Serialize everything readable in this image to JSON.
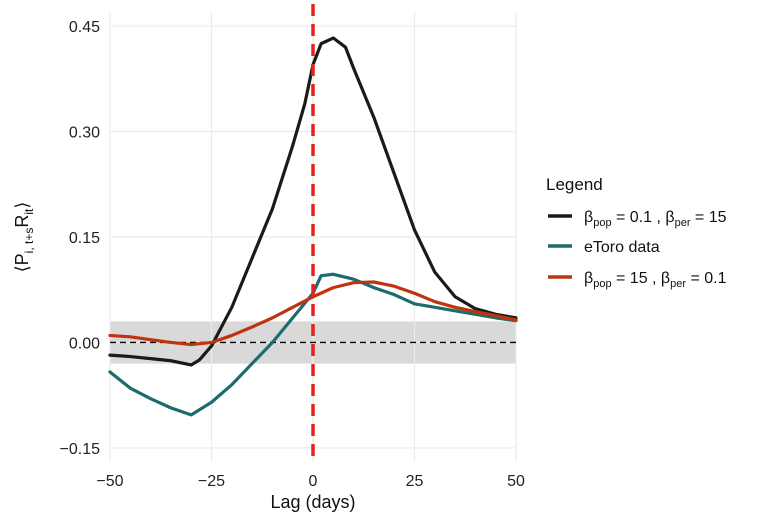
{
  "chart_data": {
    "type": "line",
    "xlabel": "Lag (days)",
    "ylabel": "⟨P_{i, t+s} R_{it}⟩",
    "xlim": [
      -50,
      50
    ],
    "ylim": [
      -0.17,
      0.47
    ],
    "x_ticks": [
      -50,
      -25,
      0,
      25,
      50
    ],
    "x_tick_labels": [
      "−50",
      "−25",
      "0",
      "25",
      "50"
    ],
    "y_ticks": [
      -0.15,
      0.0,
      0.15,
      0.3,
      0.45
    ],
    "y_tick_labels": [
      "−0.15",
      "0.00",
      "0.15",
      "0.30",
      "0.45"
    ],
    "grid": true,
    "legend_position": "right",
    "legend_title": "Legend",
    "zero_line": {
      "y": 0,
      "style": "dashed",
      "color": "#000000"
    },
    "vertical_marker": {
      "x": 0,
      "style": "dashed",
      "color": "#e8211f"
    },
    "confidence_band": {
      "color": "#d9d9d9",
      "x": [
        -50,
        -40,
        -30,
        -20,
        -10,
        0,
        10,
        20,
        30,
        40,
        50
      ],
      "upper": [
        0.03,
        0.03,
        0.03,
        0.03,
        0.03,
        0.03,
        0.03,
        0.03,
        0.03,
        0.03,
        0.03
      ],
      "lower": [
        -0.03,
        -0.03,
        -0.03,
        -0.03,
        -0.03,
        -0.03,
        -0.03,
        -0.03,
        -0.03,
        -0.03,
        -0.03
      ]
    },
    "series": [
      {
        "name": "β_pop = 0.1 , β_per = 15",
        "legend_parts": [
          "β",
          "pop",
          " = 0.1 , β",
          "per",
          " = 15"
        ],
        "color": "#1a1a1a",
        "x": [
          -50,
          -45,
          -40,
          -35,
          -30,
          -28,
          -25,
          -20,
          -15,
          -10,
          -5,
          -2,
          0,
          2,
          5,
          8,
          10,
          15,
          20,
          25,
          30,
          35,
          40,
          45,
          50
        ],
        "values": [
          -0.018,
          -0.02,
          -0.023,
          -0.026,
          -0.032,
          -0.025,
          -0.005,
          0.05,
          0.12,
          0.19,
          0.28,
          0.34,
          0.395,
          0.425,
          0.433,
          0.42,
          0.39,
          0.32,
          0.24,
          0.16,
          0.1,
          0.065,
          0.048,
          0.04,
          0.035
        ]
      },
      {
        "name": "eToro data",
        "legend_parts": [
          "eToro data",
          "",
          "",
          "",
          ""
        ],
        "color": "#1d6b6b",
        "x": [
          -50,
          -45,
          -40,
          -35,
          -30,
          -25,
          -20,
          -15,
          -10,
          -5,
          0,
          2,
          5,
          10,
          15,
          20,
          25,
          30,
          35,
          40,
          45,
          50
        ],
        "values": [
          -0.042,
          -0.065,
          -0.08,
          -0.093,
          -0.103,
          -0.085,
          -0.06,
          -0.03,
          0.0,
          0.035,
          0.07,
          0.095,
          0.097,
          0.09,
          0.078,
          0.068,
          0.055,
          0.05,
          0.045,
          0.04,
          0.035,
          0.031
        ]
      },
      {
        "name": "β_pop = 15 , β_per = 0.1",
        "legend_parts": [
          "β",
          "pop",
          " = 15 , β",
          "per",
          " = 0.1"
        ],
        "color": "#c1330e",
        "x": [
          -50,
          -45,
          -40,
          -35,
          -30,
          -25,
          -20,
          -15,
          -10,
          -5,
          0,
          5,
          10,
          15,
          20,
          25,
          30,
          35,
          40,
          45,
          50
        ],
        "values": [
          0.01,
          0.008,
          0.004,
          0.0,
          -0.003,
          0.0,
          0.01,
          0.022,
          0.035,
          0.05,
          0.065,
          0.078,
          0.085,
          0.086,
          0.08,
          0.07,
          0.058,
          0.05,
          0.044,
          0.038,
          0.032
        ]
      }
    ]
  }
}
